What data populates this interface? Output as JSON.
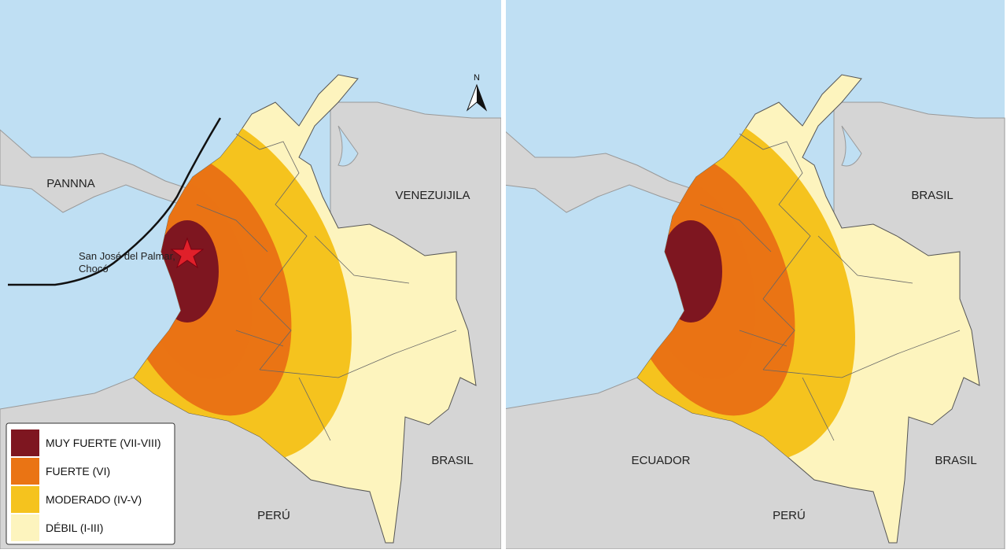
{
  "panels": [
    {
      "labels": [
        "PANNNA",
        "VENEZUIJILA",
        "BRASIL",
        "PERÚ"
      ],
      "annotation": [
        "San José del Palmar,",
        "Chocó"
      ],
      "north": "N"
    },
    {
      "labels": [
        "BRASIL",
        "ECUADOR",
        "BRASIL",
        "PERÚ"
      ]
    }
  ],
  "legend": [
    {
      "label": "MUY FUERTE (VII-VIII)",
      "color": "#7e1620"
    },
    {
      "label": "FUERTE (VI)",
      "color": "#ea7414"
    },
    {
      "label": "MODERADO (IV-V)",
      "color": "#f5c31e"
    },
    {
      "label": "DÉBIL (I-III)",
      "color": "#fdf4be"
    }
  ]
}
